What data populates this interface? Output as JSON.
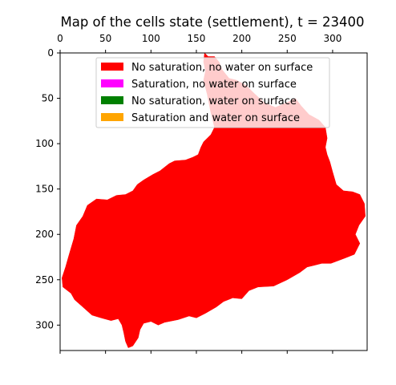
{
  "chart_data": {
    "type": "heatmap",
    "title": "Map of the cells state (settlement),  t = 23400",
    "xlabel": "",
    "ylabel": "",
    "xlim": [
      0,
      338
    ],
    "ylim": [
      328,
      0
    ],
    "x_axis_position": "top",
    "x_ticks": [
      0,
      50,
      100,
      150,
      200,
      250,
      300
    ],
    "y_ticks": [
      0,
      50,
      100,
      150,
      200,
      250,
      300
    ],
    "grid": false,
    "legend_position": "top-right",
    "legend": [
      {
        "label": "No saturation, no water on surface",
        "color": "#ff0000"
      },
      {
        "label": "Saturation, no water on surface",
        "color": "#ff00ff"
      },
      {
        "label": "No saturation, water on surface",
        "color": "#008000"
      },
      {
        "label": "Saturation and water on surface",
        "color": "#ffa500"
      }
    ],
    "region": {
      "state": "No saturation, no water on surface",
      "color": "#ff0000",
      "outline": [
        [
          159,
          0
        ],
        [
          163,
          4
        ],
        [
          170,
          4
        ],
        [
          175,
          10
        ],
        [
          178,
          18
        ],
        [
          186,
          28
        ],
        [
          194,
          30
        ],
        [
          205,
          36
        ],
        [
          214,
          45
        ],
        [
          225,
          55
        ],
        [
          237,
          60
        ],
        [
          251,
          54
        ],
        [
          259,
          50
        ],
        [
          265,
          58
        ],
        [
          274,
          68
        ],
        [
          285,
          74
        ],
        [
          292,
          82
        ],
        [
          294,
          94
        ],
        [
          292,
          104
        ],
        [
          294,
          112
        ],
        [
          297,
          120
        ],
        [
          300,
          131
        ],
        [
          304,
          145
        ],
        [
          312,
          152
        ],
        [
          322,
          153
        ],
        [
          330,
          156
        ],
        [
          335,
          166
        ],
        [
          336,
          180
        ],
        [
          329,
          190
        ],
        [
          325,
          200
        ],
        [
          330,
          210
        ],
        [
          324,
          222
        ],
        [
          314,
          226
        ],
        [
          298,
          232
        ],
        [
          288,
          232
        ],
        [
          280,
          234
        ],
        [
          272,
          236
        ],
        [
          264,
          242
        ],
        [
          250,
          250
        ],
        [
          235,
          257
        ],
        [
          218,
          258
        ],
        [
          208,
          262
        ],
        [
          200,
          271
        ],
        [
          190,
          270
        ],
        [
          185,
          272
        ],
        [
          180,
          274
        ],
        [
          172,
          280
        ],
        [
          160,
          287
        ],
        [
          150,
          292
        ],
        [
          142,
          290
        ],
        [
          130,
          294
        ],
        [
          115,
          297
        ],
        [
          108,
          300
        ],
        [
          100,
          296
        ],
        [
          92,
          298
        ],
        [
          88,
          305
        ],
        [
          86,
          314
        ],
        [
          80,
          323
        ],
        [
          75,
          325
        ],
        [
          72,
          318
        ],
        [
          70,
          308
        ],
        [
          68,
          300
        ],
        [
          64,
          293
        ],
        [
          56,
          295
        ],
        [
          45,
          292
        ],
        [
          35,
          289
        ],
        [
          25,
          280
        ],
        [
          16,
          272
        ],
        [
          12,
          265
        ],
        [
          3,
          258
        ],
        [
          2,
          248
        ],
        [
          6,
          236
        ],
        [
          10,
          222
        ],
        [
          15,
          205
        ],
        [
          18,
          190
        ],
        [
          25,
          180
        ],
        [
          30,
          168
        ],
        [
          40,
          161
        ],
        [
          52,
          162
        ],
        [
          62,
          157
        ],
        [
          72,
          156
        ],
        [
          80,
          152
        ],
        [
          85,
          145
        ],
        [
          92,
          140
        ],
        [
          102,
          134
        ],
        [
          110,
          130
        ],
        [
          120,
          122
        ],
        [
          126,
          119
        ],
        [
          138,
          118
        ],
        [
          146,
          115
        ],
        [
          152,
          112
        ],
        [
          155,
          104
        ],
        [
          158,
          98
        ],
        [
          162,
          94
        ],
        [
          166,
          90
        ],
        [
          170,
          82
        ],
        [
          168,
          74
        ],
        [
          166,
          66
        ],
        [
          164,
          56
        ],
        [
          162,
          46
        ],
        [
          160,
          38
        ],
        [
          158,
          30
        ],
        [
          160,
          20
        ],
        [
          158,
          10
        ]
      ]
    }
  }
}
